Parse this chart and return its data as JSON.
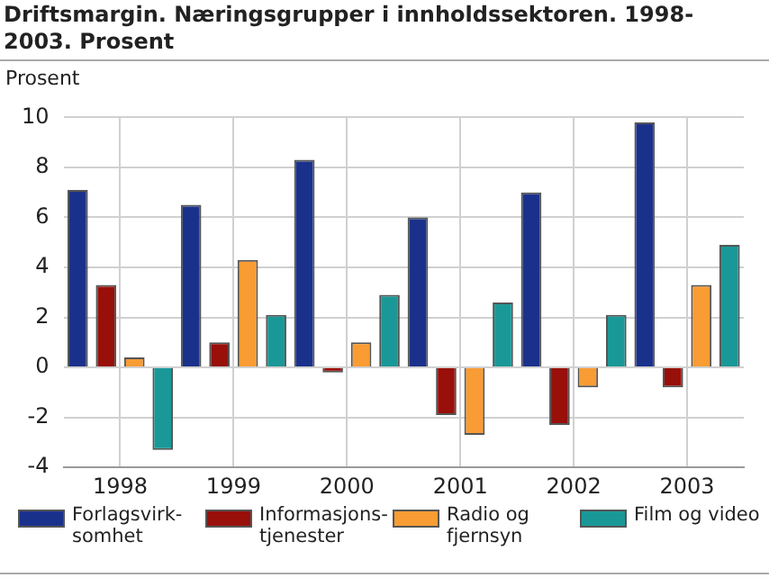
{
  "chart_data": {
    "type": "bar",
    "title": "Driftsmargin. Næringsgrupper i innholdssektoren. 1998-2003. Prosent",
    "ylabel": "Prosent",
    "categories": [
      "1998",
      "1999",
      "2000",
      "2001",
      "2002",
      "2003"
    ],
    "series": [
      {
        "name": "Forlagsvirk-somhet",
        "color": "#1a318c",
        "values": [
          7.1,
          6.5,
          8.3,
          6.0,
          7.0,
          9.8
        ]
      },
      {
        "name": "Informasjons-tjenester",
        "color": "#990f0a",
        "values": [
          3.3,
          1.0,
          -0.2,
          -1.9,
          -2.3,
          -0.8
        ]
      },
      {
        "name": "Radio og fjernsyn",
        "color": "#f89c33",
        "values": [
          0.4,
          4.3,
          1.0,
          -2.7,
          -0.8,
          3.3
        ]
      },
      {
        "name": "Film og video",
        "color": "#1a9898",
        "values": [
          -3.3,
          2.1,
          2.9,
          2.6,
          2.1,
          4.9
        ]
      }
    ],
    "ylim": [
      -4,
      10
    ],
    "yticks": [
      -4,
      -2,
      0,
      2,
      4,
      6,
      8,
      10
    ],
    "grid": true,
    "legend": "bottom"
  }
}
